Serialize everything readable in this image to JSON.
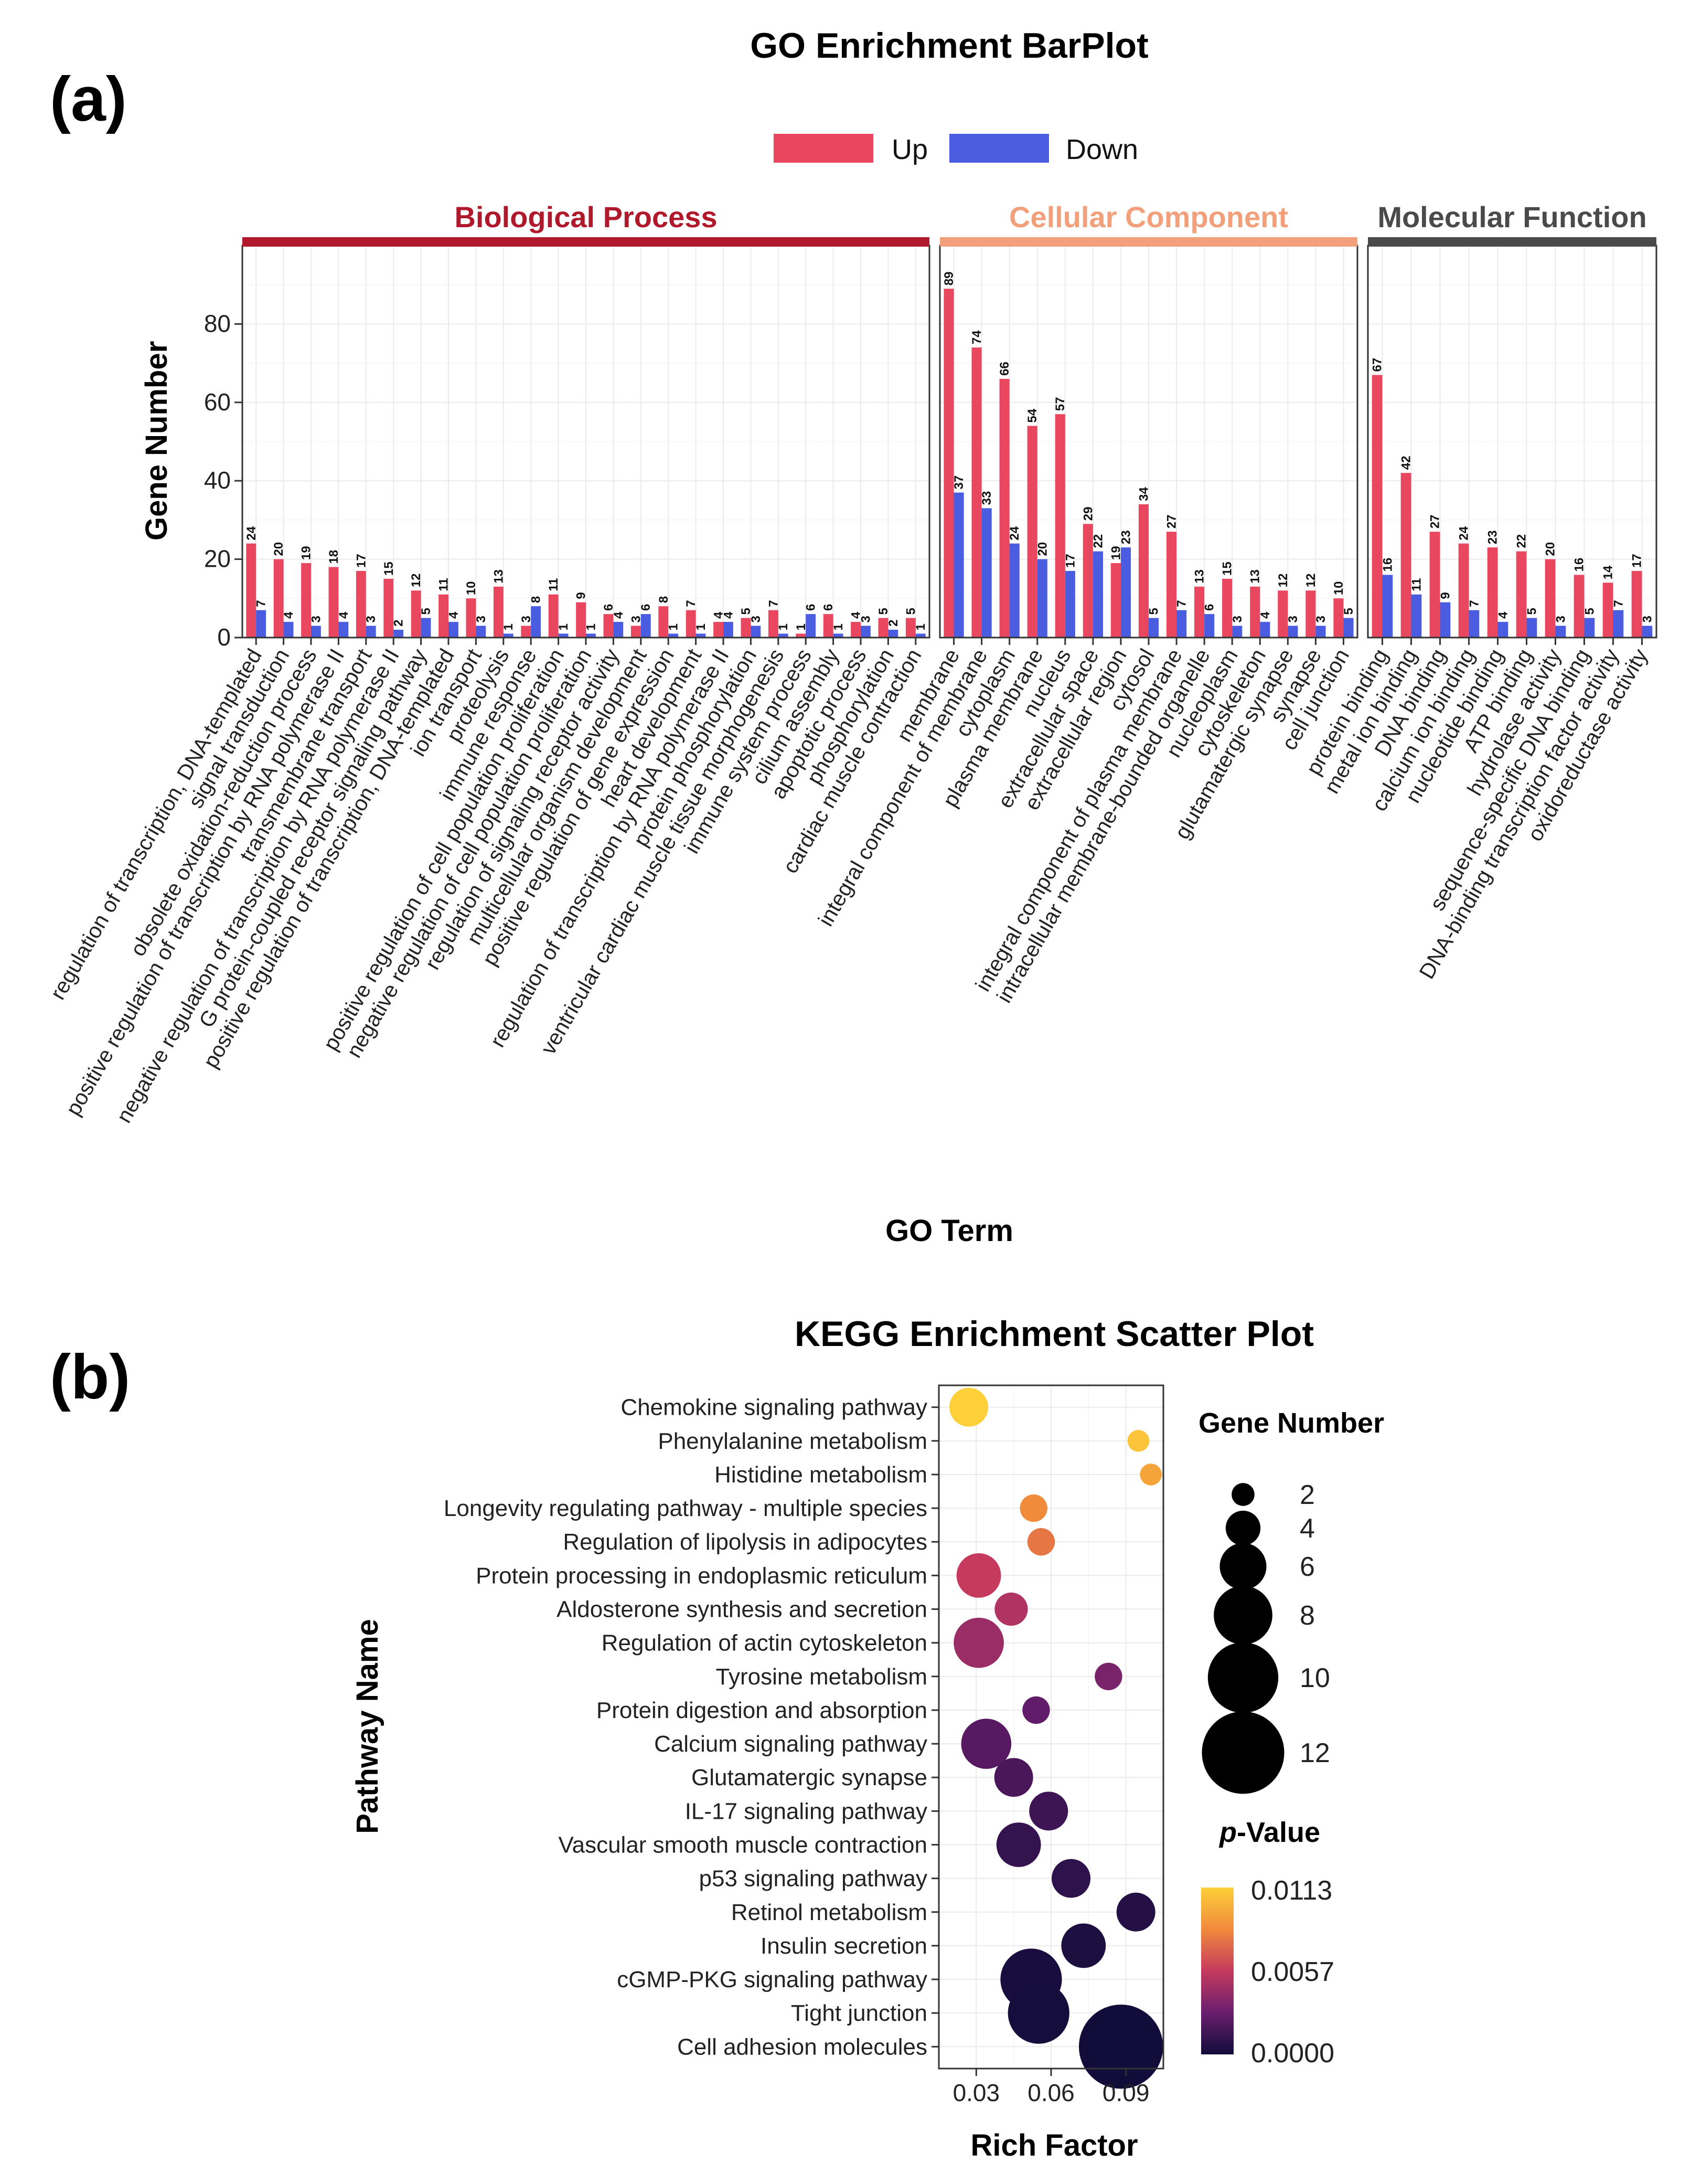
{
  "panel_a": {
    "letter": "(a)",
    "legend": {
      "up": "Up",
      "down": "Down"
    },
    "colors": {
      "up": "#e8475f",
      "down": "#4a5ce0",
      "bp": "#b0182c",
      "cc": "#f2a07b",
      "mf": "#4a4a4a"
    }
  },
  "panel_b": {
    "letter": "(b)"
  },
  "chart_data": [
    {
      "type": "bar",
      "title": "GO Enrichment BarPlot",
      "xlabel": "GO Term",
      "ylabel": "Gene Number",
      "ylim": [
        0,
        100
      ],
      "yticks": [
        0,
        20,
        40,
        60,
        80
      ],
      "series_names": [
        "Up",
        "Down"
      ],
      "facets": [
        {
          "name": "Biological Process",
          "categories": [
            "regulation of transcription, DNA-templated",
            "signal transduction",
            "obsolete oxidation-reduction process",
            "positive regulation of transcription by RNA polymerase II",
            "transmembrane transport",
            "negative regulation of transcription by RNA polymerase II",
            "G protein-coupled receptor signaling pathway",
            "positive regulation of transcription, DNA-templated",
            "ion transport",
            "proteolysis",
            "immune response",
            "positive regulation of cell population proliferation",
            "negative regulation of cell population proliferation",
            "regulation of signaling receptor activity",
            "multicellular organism development",
            "positive regulation of gene expression",
            "heart development",
            "regulation of transcription by RNA polymerase II",
            "protein phosphorylation",
            "ventricular cardiac muscle tissue morphogenesis",
            "immune system process",
            "cilium assembly",
            "apoptotic process",
            "phosphorylation",
            "cardiac muscle contraction"
          ],
          "up": [
            24,
            20,
            19,
            18,
            17,
            15,
            12,
            11,
            10,
            13,
            3,
            11,
            9,
            6,
            3,
            8,
            7,
            4,
            5,
            7,
            1,
            6,
            4,
            5,
            5
          ],
          "down": [
            7,
            4,
            3,
            4,
            3,
            2,
            5,
            4,
            3,
            1,
            8,
            1,
            1,
            4,
            6,
            1,
            1,
            4,
            3,
            1,
            6,
            1,
            3,
            2,
            1
          ]
        },
        {
          "name": "Cellular Component",
          "categories": [
            "membrane",
            "integral component of membrane",
            "cytoplasm",
            "plasma membrane",
            "nucleus",
            "extracellular space",
            "extracellular region",
            "cytosol",
            "integral component of plasma membrane",
            "intracellular membrane-bounded organelle",
            "nucleoplasm",
            "cytoskeleton",
            "glutamatergic synapse",
            "synapse",
            "cell junction"
          ],
          "up": [
            89,
            74,
            66,
            54,
            57,
            29,
            19,
            34,
            27,
            13,
            15,
            13,
            12,
            12,
            10
          ],
          "down": [
            37,
            33,
            24,
            20,
            17,
            22,
            23,
            5,
            7,
            6,
            3,
            4,
            3,
            3,
            5
          ]
        },
        {
          "name": "Molecular Function",
          "categories": [
            "protein binding",
            "metal ion binding",
            "DNA binding",
            "calcium ion binding",
            "nucleotide binding",
            "ATP binding",
            "hydrolase activity",
            "sequence-specific DNA binding",
            "DNA-binding transcription factor activity",
            "oxidoreductase activity"
          ],
          "up": [
            67,
            42,
            27,
            24,
            23,
            22,
            20,
            16,
            14,
            17
          ],
          "down": [
            16,
            11,
            9,
            7,
            4,
            5,
            3,
            5,
            7,
            3
          ]
        }
      ]
    },
    {
      "type": "scatter",
      "title": "KEGG Enrichment Scatter Plot",
      "xlabel": "Rich Factor",
      "ylabel": "Pathway Name",
      "xlim": [
        0.015,
        0.105
      ],
      "xticks": [
        0.03,
        0.06,
        0.09
      ],
      "xtick_labels": [
        "0.03",
        "0.06",
        "0.09"
      ],
      "size_legend": {
        "title": "Gene Number",
        "values": [
          2,
          4,
          6,
          8,
          10,
          12
        ]
      },
      "color_legend": {
        "title_italic": "p",
        "title_rest": "-Value",
        "labels": [
          "0.0113",
          "0.0057",
          "0.0000"
        ],
        "range": [
          0,
          0.0113
        ]
      },
      "points": [
        {
          "pathway": "Chemokine signaling pathway",
          "rich_factor": 0.027,
          "gene_number": 5,
          "p_value": 0.0113
        },
        {
          "pathway": "Phenylalanine metabolism",
          "rich_factor": 0.095,
          "gene_number": 2,
          "p_value": 0.0108
        },
        {
          "pathway": "Histidine metabolism",
          "rich_factor": 0.1,
          "gene_number": 2,
          "p_value": 0.0095
        },
        {
          "pathway": "Longevity regulating pathway - multiple species",
          "rich_factor": 0.053,
          "gene_number": 3,
          "p_value": 0.0085
        },
        {
          "pathway": "Regulation of lipolysis in adipocytes",
          "rich_factor": 0.056,
          "gene_number": 3,
          "p_value": 0.0078
        },
        {
          "pathway": "Protein processing in endoplasmic reticulum",
          "rich_factor": 0.031,
          "gene_number": 6,
          "p_value": 0.0057
        },
        {
          "pathway": "Aldosterone synthesis and secretion",
          "rich_factor": 0.044,
          "gene_number": 4,
          "p_value": 0.005
        },
        {
          "pathway": "Regulation of actin cytoskeleton",
          "rich_factor": 0.031,
          "gene_number": 7,
          "p_value": 0.0043
        },
        {
          "pathway": "Tyrosine metabolism",
          "rich_factor": 0.083,
          "gene_number": 3,
          "p_value": 0.0033
        },
        {
          "pathway": "Protein digestion and absorption",
          "rich_factor": 0.054,
          "gene_number": 3,
          "p_value": 0.0025
        },
        {
          "pathway": "Calcium signaling pathway",
          "rich_factor": 0.034,
          "gene_number": 7,
          "p_value": 0.0022
        },
        {
          "pathway": "Glutamatergic synapse",
          "rich_factor": 0.045,
          "gene_number": 5,
          "p_value": 0.0018
        },
        {
          "pathway": "IL-17 signaling pathway",
          "rich_factor": 0.059,
          "gene_number": 5,
          "p_value": 0.0014
        },
        {
          "pathway": "Vascular smooth muscle contraction",
          "rich_factor": 0.047,
          "gene_number": 6,
          "p_value": 0.0011
        },
        {
          "pathway": "p53 signaling pathway",
          "rich_factor": 0.068,
          "gene_number": 5,
          "p_value": 0.0009
        },
        {
          "pathway": "Retinol metabolism",
          "rich_factor": 0.094,
          "gene_number": 5,
          "p_value": 0.0006
        },
        {
          "pathway": "Insulin secretion",
          "rich_factor": 0.073,
          "gene_number": 6,
          "p_value": 0.0004
        },
        {
          "pathway": "cGMP-PKG signaling pathway",
          "rich_factor": 0.052,
          "gene_number": 9,
          "p_value": 0.0002
        },
        {
          "pathway": "Tight junction",
          "rich_factor": 0.055,
          "gene_number": 9,
          "p_value": 0.0001
        },
        {
          "pathway": "Cell adhesion molecules",
          "rich_factor": 0.088,
          "gene_number": 13,
          "p_value": 0.0
        }
      ]
    }
  ]
}
